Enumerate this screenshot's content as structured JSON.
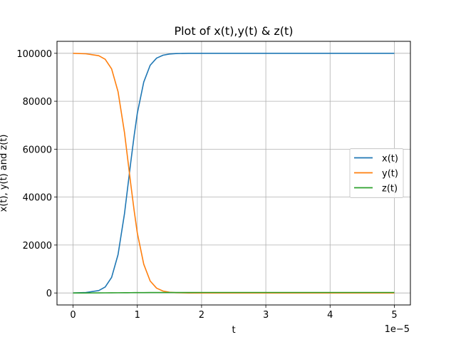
{
  "chart_data": {
    "type": "line",
    "title": "Plot of x(t),y(t) & z(t)",
    "xlabel": "t",
    "ylabel": "x(t), y(t)  and z(t)",
    "x_offset_label": "1e−5",
    "xlim": [
      -2.5e-06,
      5.25e-05
    ],
    "ylim": [
      -5000,
      105000
    ],
    "xticks": [
      0,
      1e-05,
      2e-05,
      3e-05,
      4e-05,
      5e-05
    ],
    "xtick_labels": [
      "0",
      "1",
      "2",
      "3",
      "4",
      "5"
    ],
    "yticks": [
      0,
      20000,
      40000,
      60000,
      80000,
      100000
    ],
    "ytick_labels": [
      "0",
      "20000",
      "40000",
      "60000",
      "80000",
      "100000"
    ],
    "grid": true,
    "legend_position": "center-right",
    "x": [
      0,
      2e-06,
      4e-06,
      5e-06,
      6e-06,
      7e-06,
      8e-06,
      8.5e-06,
      9e-06,
      9.5e-06,
      1e-05,
      1.1e-05,
      1.2e-05,
      1.3e-05,
      1.4e-05,
      1.5e-05,
      1.6e-05,
      1.8e-05,
      2e-05,
      3e-05,
      4e-05,
      5e-05
    ],
    "series": [
      {
        "name": "x(t)",
        "color": "#1f77b4",
        "values": [
          0,
          200,
          1000,
          2500,
          6500,
          16000,
          33000,
          44000,
          55000,
          65500,
          75000,
          88000,
          95000,
          98000,
          99200,
          99700,
          99900,
          100000,
          100000,
          100000,
          100000,
          100000
        ]
      },
      {
        "name": "y(t)",
        "color": "#ff7f0e",
        "values": [
          100000,
          99800,
          99000,
          97500,
          93500,
          84000,
          67000,
          56000,
          45000,
          34500,
          25000,
          12000,
          5000,
          2000,
          800,
          300,
          100,
          0,
          0,
          0,
          0,
          0
        ]
      },
      {
        "name": "z(t)",
        "color": "#2ca02c",
        "values": [
          0,
          10,
          30,
          50,
          70,
          90,
          110,
          120,
          130,
          140,
          150,
          160,
          170,
          175,
          180,
          185,
          190,
          195,
          200,
          200,
          200,
          200
        ]
      }
    ]
  }
}
